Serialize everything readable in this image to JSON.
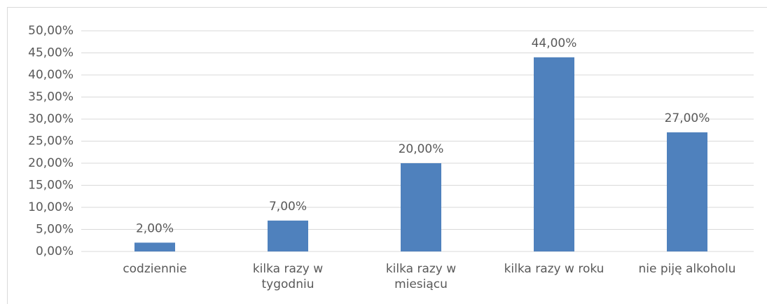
{
  "chart_data": {
    "type": "bar",
    "categories": [
      "codziennie",
      "kilka razy w tygodniu",
      "kilka razy w miesiącu",
      "kilka razy w roku",
      "nie piję alkoholu"
    ],
    "values": [
      2,
      7,
      20,
      44,
      27
    ],
    "value_labels": [
      "2,00%",
      "7,00%",
      "20,00%",
      "44,00%",
      "27,00%"
    ],
    "color": "#4f81bd",
    "ylim": [
      0,
      50
    ],
    "yticks": [
      {
        "value": 0,
        "label": "0,00%"
      },
      {
        "value": 5,
        "label": "5,00%"
      },
      {
        "value": 10,
        "label": "10,00%"
      },
      {
        "value": 15,
        "label": "15,00%"
      },
      {
        "value": 20,
        "label": "20,00%"
      },
      {
        "value": 25,
        "label": "25,00%"
      },
      {
        "value": 30,
        "label": "30,00%"
      },
      {
        "value": 35,
        "label": "35,00%"
      },
      {
        "value": 40,
        "label": "40,00%"
      },
      {
        "value": 45,
        "label": "45,00%"
      },
      {
        "value": 50,
        "label": "50,00%"
      }
    ],
    "grid": true
  }
}
